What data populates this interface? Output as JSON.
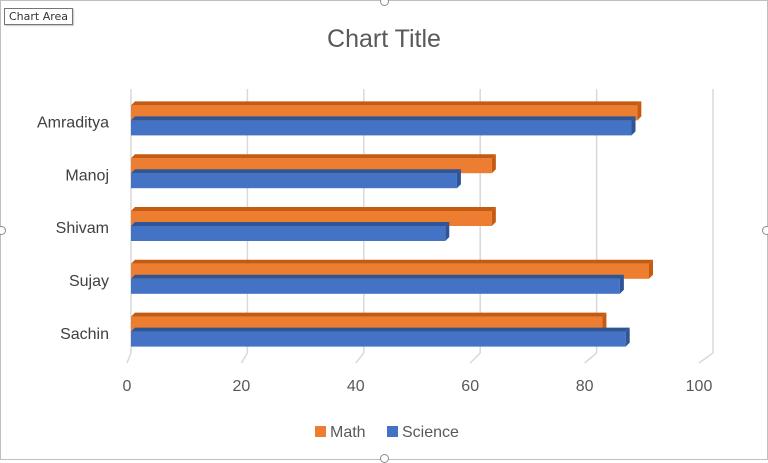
{
  "chart_area_tooltip": "Chart Area",
  "chart_data": {
    "type": "bar",
    "orientation": "horizontal",
    "style": "3d-clustered",
    "title": "Chart Title",
    "xlabel": "",
    "ylabel": "",
    "categories": [
      "Sachin",
      "Sujay",
      "Shivam",
      "Manoj",
      "Amraditya"
    ],
    "series": [
      {
        "name": "Math",
        "values": [
          81,
          89,
          62,
          62,
          87
        ],
        "color": "#ED7D31",
        "top_color": "#C55A11"
      },
      {
        "name": "Science",
        "values": [
          85,
          84,
          54,
          56,
          86
        ],
        "color": "#4472C4",
        "top_color": "#2F5597"
      }
    ],
    "xlim": [
      0,
      100
    ],
    "ticks": [
      "0",
      "20",
      "40",
      "60",
      "80",
      "100"
    ],
    "grid": true,
    "legend_position": "bottom"
  }
}
